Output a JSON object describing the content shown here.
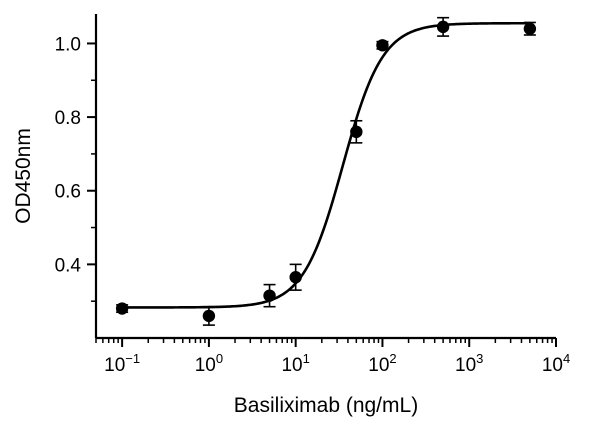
{
  "chart_data": {
    "type": "scatter",
    "title": "",
    "xlabel": "Basiliximab (ng/mL)",
    "ylabel": "OD450nm",
    "x_scale": "log",
    "xlim": [
      0.05,
      10000
    ],
    "ylim": [
      0.2,
      1.08
    ],
    "grid": false,
    "legend": "none",
    "x_ticks": [
      {
        "base": "10",
        "exp": "−1",
        "value": 0.1
      },
      {
        "base": "10",
        "exp": "0",
        "value": 1
      },
      {
        "base": "10",
        "exp": "1",
        "value": 10
      },
      {
        "base": "10",
        "exp": "2",
        "value": 100
      },
      {
        "base": "10",
        "exp": "3",
        "value": 1000
      },
      {
        "base": "10",
        "exp": "4",
        "value": 10000
      }
    ],
    "y_ticks": [
      {
        "label": "0.4",
        "value": 0.4
      },
      {
        "label": "0.6",
        "value": 0.6
      },
      {
        "label": "0.8",
        "value": 0.8
      },
      {
        "label": "1.0",
        "value": 1.0
      }
    ],
    "points": [
      {
        "x": 0.1,
        "y": 0.28,
        "err": 0.01
      },
      {
        "x": 1,
        "y": 0.26,
        "err": 0.025
      },
      {
        "x": 5,
        "y": 0.315,
        "err": 0.03
      },
      {
        "x": 10,
        "y": 0.365,
        "err": 0.035
      },
      {
        "x": 50,
        "y": 0.76,
        "err": 0.03
      },
      {
        "x": 100,
        "y": 0.995,
        "err": 0.01
      },
      {
        "x": 500,
        "y": 1.045,
        "err": 0.025
      },
      {
        "x": 5000,
        "y": 1.04,
        "err": 0.017
      }
    ],
    "fit": {
      "model": "4PL",
      "bottom": 0.283,
      "top": 1.055,
      "ec50": 35,
      "hill": 1.9
    },
    "colors": {
      "marks": "#000000"
    }
  }
}
